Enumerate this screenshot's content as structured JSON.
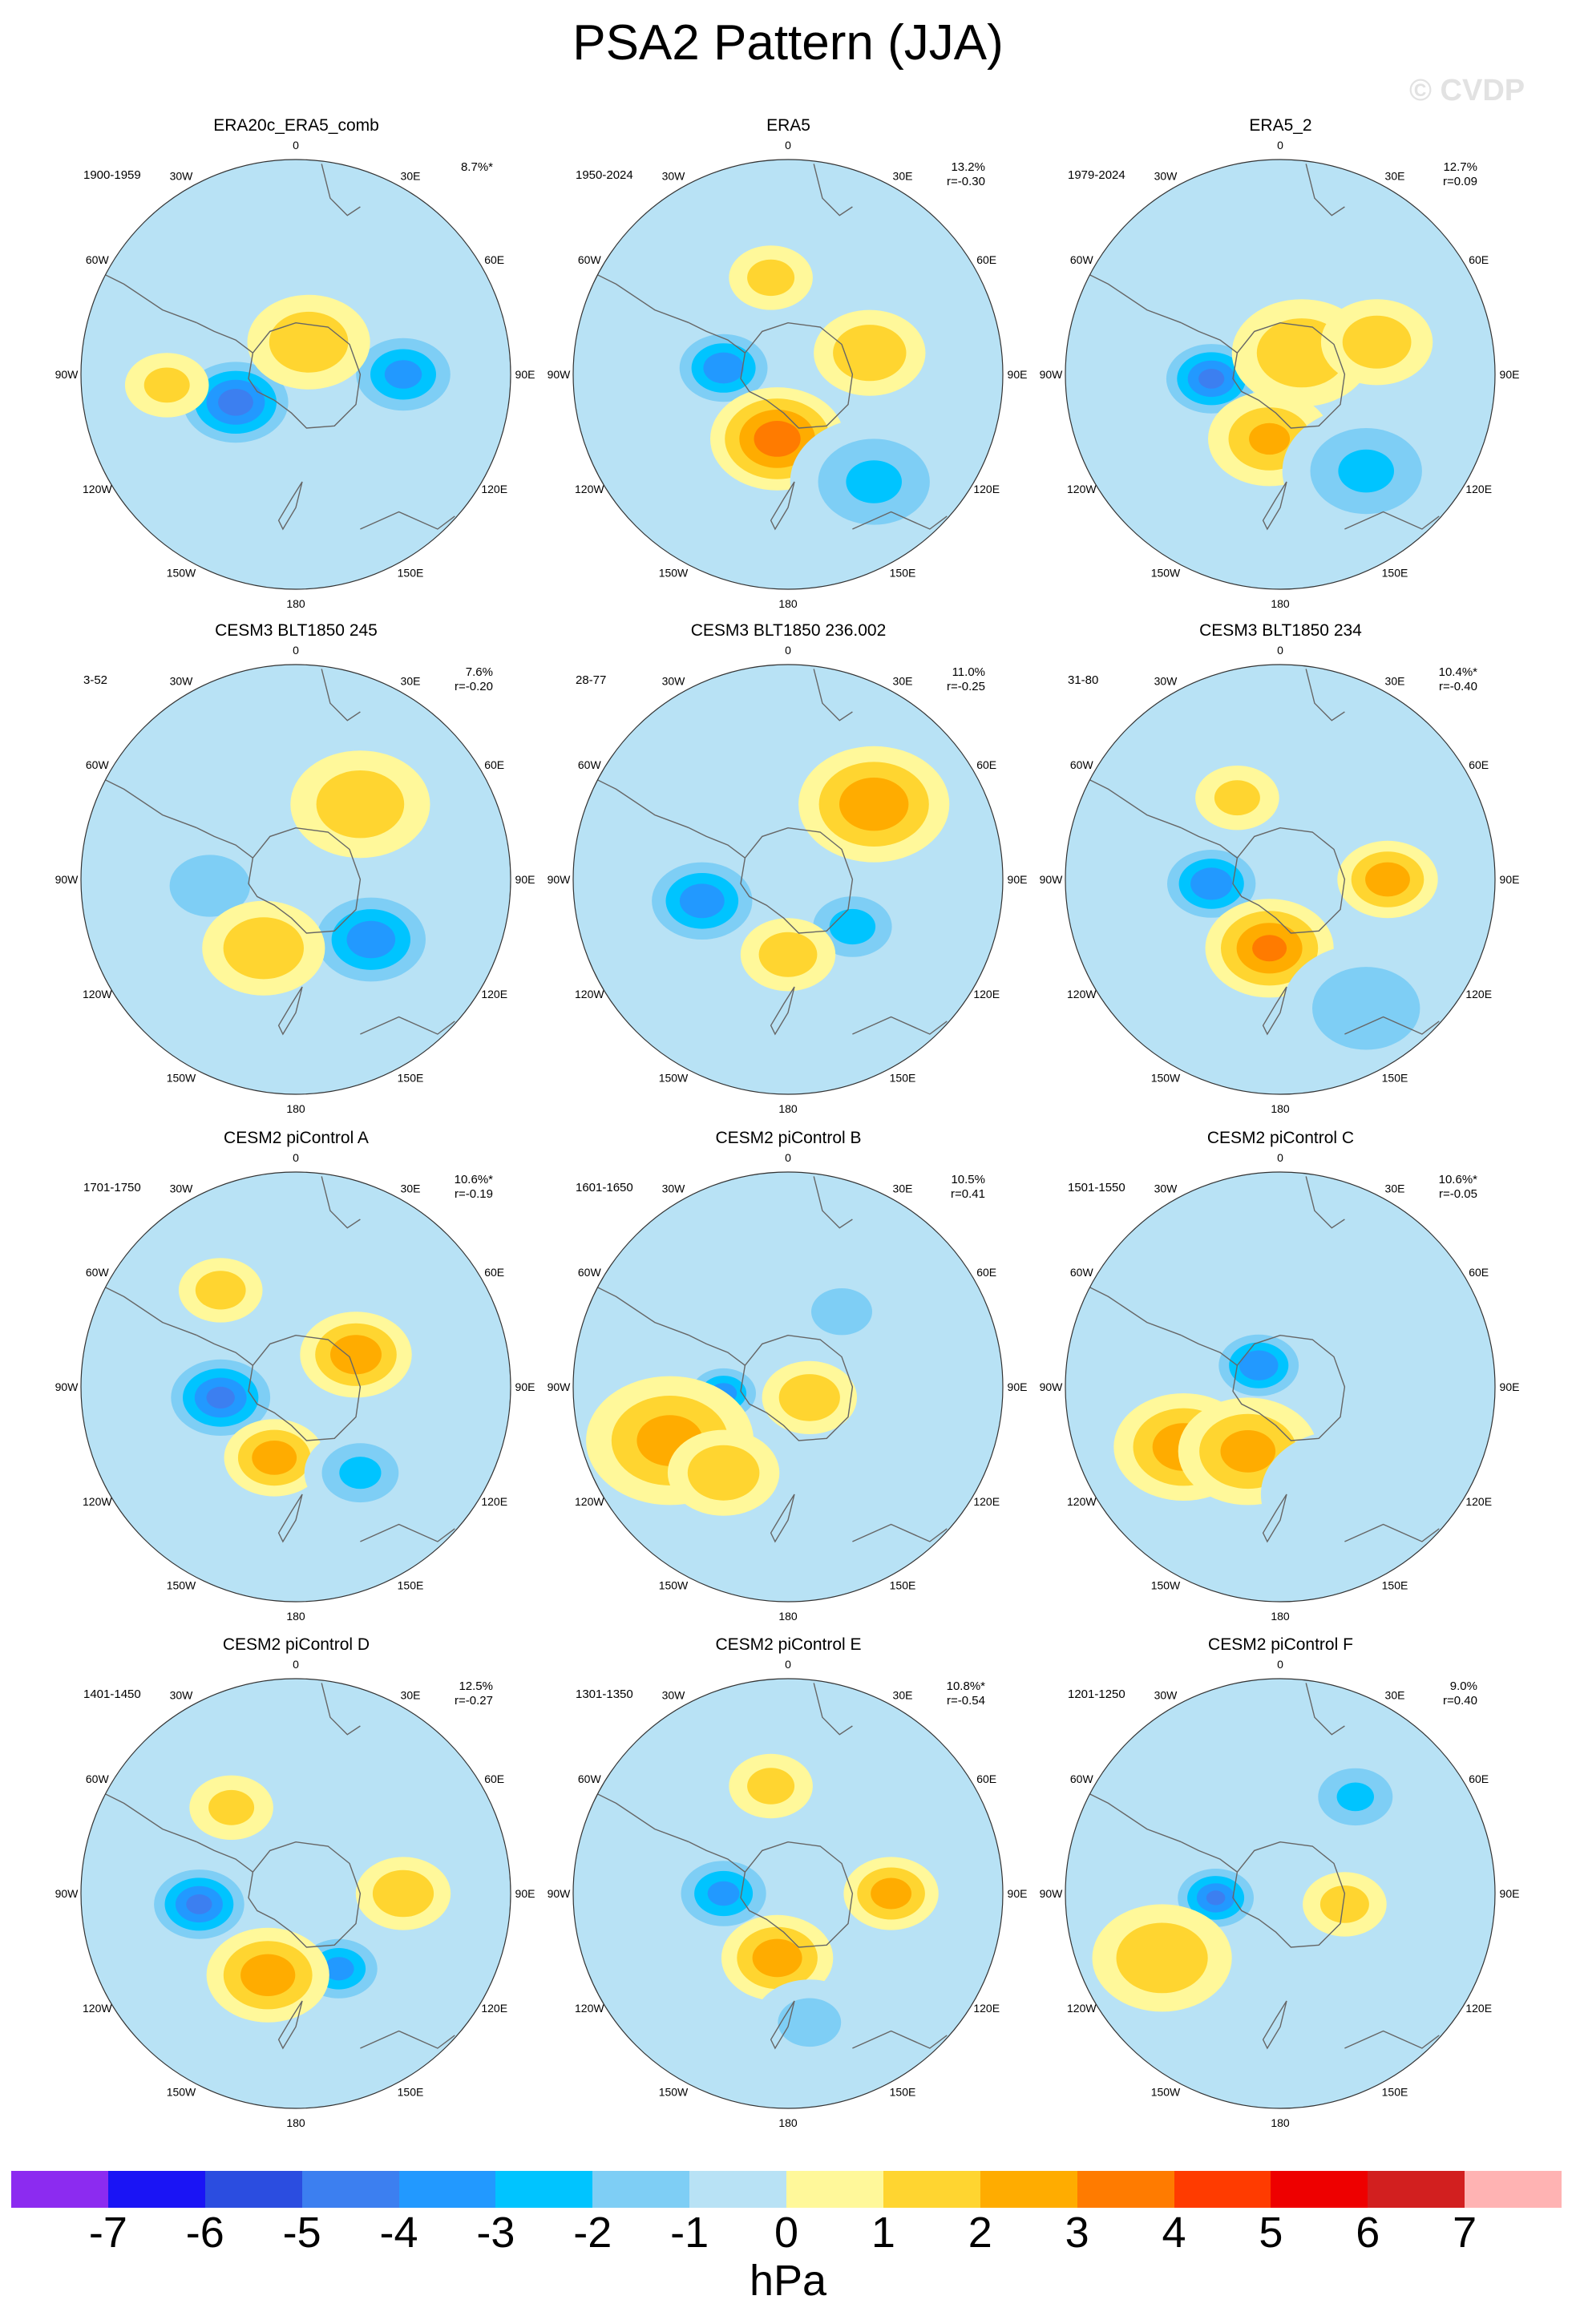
{
  "title": "PSA2 Pattern (JJA)",
  "watermark": "© CVDP",
  "units": "hPa",
  "colorbar": {
    "colors": [
      "#8c2bf0",
      "#1a14f5",
      "#2b4de0",
      "#3c7ff0",
      "#2299ff",
      "#00c4ff",
      "#7ecef5",
      "#b8e2f5",
      "#fff89a",
      "#ffd530",
      "#ffac00",
      "#ff7b00",
      "#ff3b00",
      "#ee0000",
      "#d21f1f",
      "#ffb3b3"
    ],
    "labels": [
      "-7",
      "-6",
      "-5",
      "-4",
      "-3",
      "-2",
      "-1",
      "0",
      "1",
      "2",
      "3",
      "4",
      "5",
      "6",
      "7"
    ]
  },
  "lon_labels": {
    "top": "0",
    "tr1": "30E",
    "tr2": "60E",
    "right": "90E",
    "br1": "120E",
    "br2": "150E",
    "bottom": "180",
    "bl2": "150W",
    "bl1": "120W",
    "left": "90W",
    "tl2": "60W",
    "tl1": "30W"
  },
  "panels": [
    {
      "title": "ERA20c_ERA5_comb",
      "years": "1900-1959",
      "pct": "8.7%*",
      "r": ""
    },
    {
      "title": "ERA5",
      "years": "1950-2024",
      "pct": "13.2%",
      "r": "r=-0.30"
    },
    {
      "title": "ERA5_2",
      "years": "1979-2024",
      "pct": "12.7%",
      "r": "r=0.09"
    },
    {
      "title": "CESM3 BLT1850 245",
      "years": "3-52",
      "pct": "7.6%",
      "r": "r=-0.20"
    },
    {
      "title": "CESM3 BLT1850 236.002",
      "years": "28-77",
      "pct": "11.0%",
      "r": "r=-0.25"
    },
    {
      "title": "CESM3 BLT1850 234",
      "years": "31-80",
      "pct": "10.4%*",
      "r": "r=-0.40"
    },
    {
      "title": "CESM2 piControl A",
      "years": "1701-1750",
      "pct": "10.6%*",
      "r": "r=-0.19"
    },
    {
      "title": "CESM2 piControl B",
      "years": "1601-1650",
      "pct": "10.5%",
      "r": "r=0.41"
    },
    {
      "title": "CESM2 piControl C",
      "years": "1501-1550",
      "pct": "10.6%*",
      "r": "r=-0.05"
    },
    {
      "title": "CESM2 piControl D",
      "years": "1401-1450",
      "pct": "12.5%",
      "r": "r=-0.27"
    },
    {
      "title": "CESM2 piControl E",
      "years": "1301-1350",
      "pct": "10.8%*",
      "r": "r=-0.54"
    },
    {
      "title": "CESM2 piControl F",
      "years": "1201-1250",
      "pct": "9.0%",
      "r": "r=0.40"
    }
  ],
  "anomaly_centers": [
    [
      {
        "u": -0.28,
        "v": 0.13,
        "a": -4.5,
        "s": 0.23
      },
      {
        "u": 0.5,
        "v": 0.0,
        "a": -3.3,
        "s": 0.22
      },
      {
        "u": 0.06,
        "v": -0.15,
        "a": 1.8,
        "s": 0.22
      },
      {
        "u": -0.6,
        "v": 0.05,
        "a": 1.2,
        "s": 0.15
      }
    ],
    [
      {
        "u": -0.3,
        "v": -0.03,
        "a": -3.7,
        "s": 0.2
      },
      {
        "u": -0.05,
        "v": 0.3,
        "a": 3.6,
        "s": 0.24
      },
      {
        "u": 0.4,
        "v": 0.5,
        "a": -2.0,
        "s": 0.3
      },
      {
        "u": 0.38,
        "v": -0.1,
        "a": 1.9,
        "s": 0.2
      },
      {
        "u": -0.08,
        "v": -0.45,
        "a": 1.3,
        "s": 0.15
      }
    ],
    [
      {
        "u": -0.32,
        "v": 0.02,
        "a": -4.2,
        "s": 0.2
      },
      {
        "u": -0.05,
        "v": 0.3,
        "a": 2.0,
        "s": 0.22
      },
      {
        "u": 0.1,
        "v": -0.1,
        "a": 1.8,
        "s": 0.25
      },
      {
        "u": 0.4,
        "v": 0.45,
        "a": -2.0,
        "s": 0.3
      },
      {
        "u": 0.45,
        "v": -0.15,
        "a": 1.6,
        "s": 0.2
      }
    ],
    [
      {
        "u": 0.35,
        "v": 0.28,
        "a": -3.6,
        "s": 0.25
      },
      {
        "u": -0.4,
        "v": 0.03,
        "a": -1.9,
        "s": 0.22
      },
      {
        "u": -0.15,
        "v": 0.32,
        "a": 1.9,
        "s": 0.22
      },
      {
        "u": 0.3,
        "v": -0.35,
        "a": 1.7,
        "s": 0.25
      }
    ],
    [
      {
        "u": -0.4,
        "v": 0.1,
        "a": -3.6,
        "s": 0.23
      },
      {
        "u": 0.3,
        "v": 0.22,
        "a": -2.4,
        "s": 0.2
      },
      {
        "u": 0.0,
        "v": 0.35,
        "a": 1.6,
        "s": 0.17
      },
      {
        "u": 0.4,
        "v": -0.35,
        "a": 2.7,
        "s": 0.27
      }
    ],
    [
      {
        "u": -0.32,
        "v": 0.02,
        "a": -3.8,
        "s": 0.2
      },
      {
        "u": -0.05,
        "v": 0.32,
        "a": 3.1,
        "s": 0.23
      },
      {
        "u": 0.4,
        "v": 0.6,
        "a": -1.8,
        "s": 0.3
      },
      {
        "u": 0.5,
        "v": 0.0,
        "a": 2.6,
        "s": 0.18
      },
      {
        "u": -0.2,
        "v": -0.38,
        "a": 1.2,
        "s": 0.15
      }
    ],
    [
      {
        "u": -0.35,
        "v": 0.05,
        "a": -4.2,
        "s": 0.22
      },
      {
        "u": -0.1,
        "v": 0.33,
        "a": 2.6,
        "s": 0.18
      },
      {
        "u": 0.3,
        "v": 0.4,
        "a": -2.2,
        "s": 0.2
      },
      {
        "u": 0.28,
        "v": -0.15,
        "a": 2.7,
        "s": 0.2
      },
      {
        "u": -0.35,
        "v": -0.45,
        "a": 1.5,
        "s": 0.15
      }
    ],
    [
      {
        "u": -0.3,
        "v": 0.03,
        "a": -3.4,
        "s": 0.15
      },
      {
        "u": 0.1,
        "v": 0.05,
        "a": 1.8,
        "s": 0.17
      },
      {
        "u": -0.55,
        "v": 0.25,
        "a": 2.3,
        "s": 0.3
      },
      {
        "u": -0.3,
        "v": 0.4,
        "a": 1.8,
        "s": 0.2
      },
      {
        "u": 0.25,
        "v": -0.35,
        "a": -1.2,
        "s": 0.2
      }
    ],
    [
      {
        "u": -0.1,
        "v": -0.1,
        "a": -3.9,
        "s": 0.18
      },
      {
        "u": -0.45,
        "v": 0.28,
        "a": 2.6,
        "s": 0.25
      },
      {
        "u": -0.15,
        "v": 0.3,
        "a": 2.3,
        "s": 0.25
      },
      {
        "u": 0.3,
        "v": 0.5,
        "a": -0.9,
        "s": 0.3
      }
    ],
    [
      {
        "u": -0.45,
        "v": 0.05,
        "a": -4.2,
        "s": 0.2
      },
      {
        "u": 0.2,
        "v": 0.35,
        "a": -3.3,
        "s": 0.18
      },
      {
        "u": -0.13,
        "v": 0.38,
        "a": 2.6,
        "s": 0.22
      },
      {
        "u": 0.5,
        "v": 0.0,
        "a": 1.8,
        "s": 0.17
      },
      {
        "u": -0.3,
        "v": -0.4,
        "a": 1.2,
        "s": 0.15
      }
    ],
    [
      {
        "u": -0.3,
        "v": 0.0,
        "a": -3.2,
        "s": 0.2
      },
      {
        "u": -0.05,
        "v": 0.3,
        "a": 2.6,
        "s": 0.2
      },
      {
        "u": 0.48,
        "v": 0.0,
        "a": 2.5,
        "s": 0.17
      },
      {
        "u": -0.08,
        "v": -0.5,
        "a": 1.3,
        "s": 0.15
      },
      {
        "u": 0.1,
        "v": 0.6,
        "a": -1.3,
        "s": 0.2
      }
    ],
    [
      {
        "u": -0.3,
        "v": 0.02,
        "a": -4.0,
        "s": 0.17
      },
      {
        "u": -0.55,
        "v": 0.3,
        "a": 1.9,
        "s": 0.25
      },
      {
        "u": 0.35,
        "v": -0.45,
        "a": -2.0,
        "s": 0.2
      },
      {
        "u": 0.3,
        "v": 0.05,
        "a": 1.4,
        "s": 0.15
      },
      {
        "u": 0.45,
        "v": 0.5,
        "a": -0.8,
        "s": 0.3
      }
    ]
  ]
}
